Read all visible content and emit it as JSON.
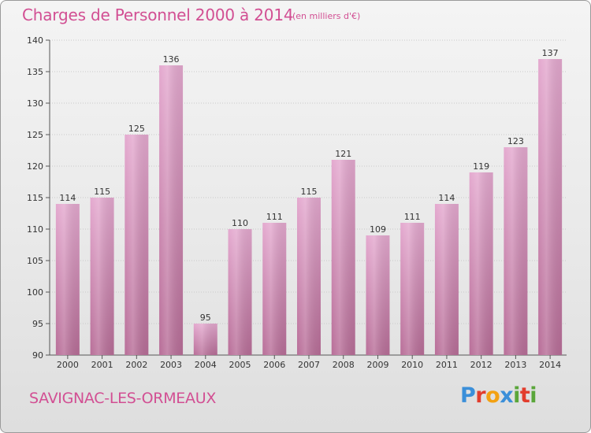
{
  "header": {
    "title": "Charges de Personnel 2000 à 2014",
    "subtitle": "(en milliers d'€)"
  },
  "footer": {
    "place": "SAVIGNAC-LES-ORMEAUX",
    "logo_letters": [
      "P",
      "r",
      "o",
      "x",
      "i",
      "t",
      "i"
    ]
  },
  "colors": {
    "bar_top": "#e4a9cf",
    "bar_bottom": "#b86e98",
    "text_accent": "#d24f93",
    "logo": [
      "#3b8fd9",
      "#e23d2d",
      "#f3a112",
      "#3b8fd9",
      "#5aa63a",
      "#e23d2d",
      "#5aa63a"
    ]
  },
  "chart_data": {
    "type": "bar",
    "categories": [
      "2000",
      "2001",
      "2002",
      "2003",
      "2004",
      "2005",
      "2006",
      "2007",
      "2008",
      "2009",
      "2010",
      "2011",
      "2012",
      "2013",
      "2014"
    ],
    "values": [
      114,
      115,
      125,
      136,
      95,
      110,
      111,
      115,
      121,
      109,
      111,
      114,
      119,
      123,
      137
    ],
    "yticks": [
      90,
      95,
      100,
      105,
      110,
      115,
      120,
      125,
      130,
      135,
      140
    ],
    "ylim": [
      90,
      140
    ],
    "grid": true
  }
}
